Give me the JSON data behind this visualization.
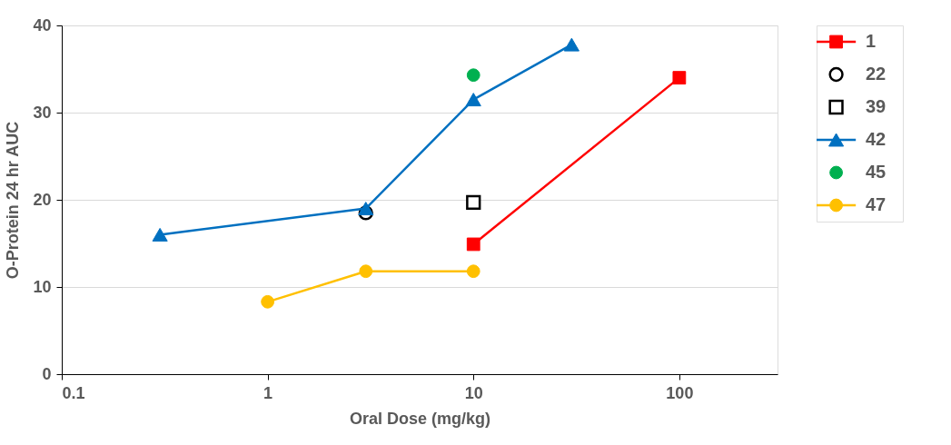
{
  "chart_data": {
    "type": "line",
    "xlabel": "Oral Dose (mg/kg)",
    "ylabel": "O-Protein 24 hr AUC",
    "log": "x",
    "grid": "y",
    "legend": "right",
    "line_style": "solid",
    "xlim": [
      0.1,
      300
    ],
    "xticks": [
      0.1,
      1,
      10,
      100
    ],
    "ylim": [
      0,
      40
    ],
    "yticks": [
      0,
      10,
      20,
      30,
      40
    ],
    "series": [
      {
        "name": "1",
        "marker": "square",
        "color": "#ff0000",
        "x": [
          10,
          100
        ],
        "values": [
          14.9,
          34.0
        ]
      },
      {
        "name": "22",
        "type": "scatter",
        "marker": "circle",
        "color": "#000000",
        "x": [
          3
        ],
        "values": [
          18.5
        ]
      },
      {
        "name": "39",
        "type": "scatter",
        "marker": "square",
        "color": "#000000",
        "x": [
          10
        ],
        "values": [
          19.7
        ]
      },
      {
        "name": "42",
        "marker": "triangle",
        "color": "#0070c0",
        "x": [
          0.3,
          3,
          10,
          30
        ],
        "values": [
          16.0,
          19.0,
          31.5,
          37.8
        ]
      },
      {
        "name": "45",
        "type": "scatter",
        "marker": "circle",
        "color": "#00b050",
        "x": [
          10
        ],
        "values": [
          34.3
        ]
      },
      {
        "name": "47",
        "marker": "circle",
        "color": "#ffc000",
        "x": [
          1,
          3,
          10
        ],
        "values": [
          8.3,
          11.8,
          11.8
        ]
      }
    ]
  }
}
